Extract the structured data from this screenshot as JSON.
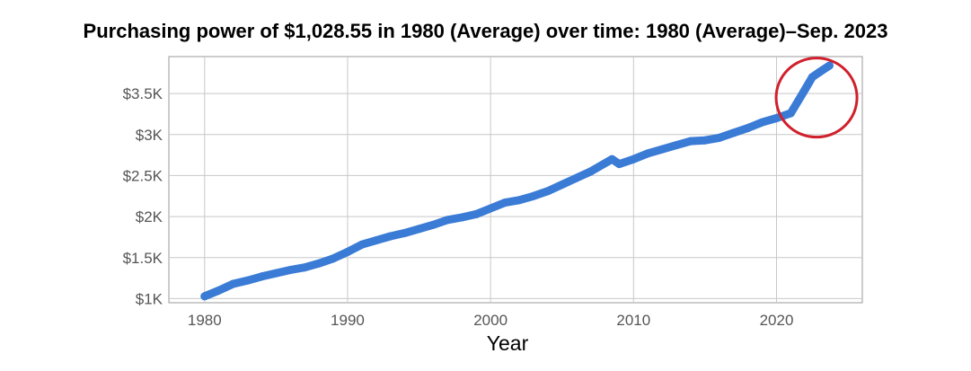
{
  "chart_data": {
    "type": "line",
    "title": "Purchasing power of $1,028.55 in 1980 (Average) over time: 1980 (Average)–Sep. 2023",
    "xlabel": "Year",
    "ylabel": "",
    "xlim": [
      1977.5,
      2026
    ],
    "ylim": [
      950,
      3950
    ],
    "grid": true,
    "legend": "none",
    "x_ticks": [
      {
        "value": 1980,
        "label": "1980"
      },
      {
        "value": 1990,
        "label": "1990"
      },
      {
        "value": 2000,
        "label": "2000"
      },
      {
        "value": 2010,
        "label": "2010"
      },
      {
        "value": 2020,
        "label": "2020"
      }
    ],
    "y_ticks": [
      {
        "value": 1000,
        "label": "$1K"
      },
      {
        "value": 1500,
        "label": "$1.5K"
      },
      {
        "value": 2000,
        "label": "$2K"
      },
      {
        "value": 2500,
        "label": "$2.5K"
      },
      {
        "value": 3000,
        "label": "$3K"
      },
      {
        "value": 3500,
        "label": "$3.5K"
      }
    ],
    "series": [
      {
        "color": "#3a7bd5",
        "x": [
          1980,
          1981,
          1982,
          1983,
          1984,
          1985,
          1986,
          1987,
          1988,
          1989,
          1990,
          1991,
          1992,
          1993,
          1994,
          1995,
          1996,
          1997,
          1998,
          1999,
          2000,
          2001,
          2002,
          2003,
          2004,
          2005,
          2006,
          2007,
          2008.5,
          2009,
          2010,
          2011,
          2012,
          2013,
          2014,
          2015,
          2016,
          2017,
          2018,
          2019,
          2020,
          2021,
          2022,
          2022.5,
          2023,
          2023.7
        ],
        "y": [
          1029,
          1100,
          1180,
          1220,
          1270,
          1310,
          1350,
          1380,
          1430,
          1490,
          1570,
          1660,
          1710,
          1760,
          1800,
          1850,
          1900,
          1960,
          1990,
          2030,
          2100,
          2170,
          2200,
          2250,
          2310,
          2390,
          2470,
          2550,
          2700,
          2640,
          2700,
          2770,
          2820,
          2870,
          2920,
          2930,
          2960,
          3020,
          3080,
          3150,
          3200,
          3260,
          3550,
          3700,
          3760,
          3840
        ]
      }
    ],
    "annotations": [
      {
        "type": "circle",
        "color": "#d0202c",
        "cx": 2022.8,
        "cy": 3450,
        "description": "highlight"
      }
    ]
  }
}
